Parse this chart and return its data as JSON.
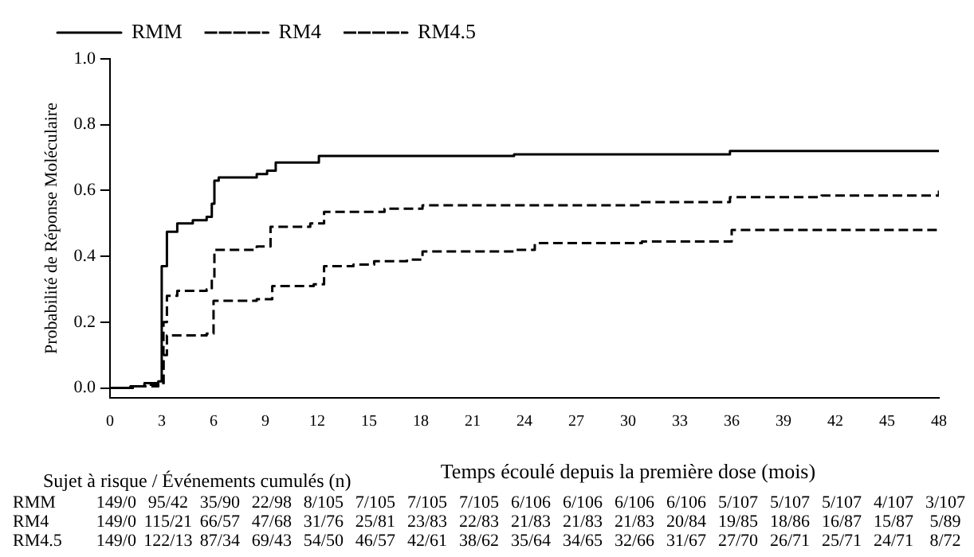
{
  "chart_data": {
    "type": "step",
    "ylabel": "Probabilité de Réponse Moléculaire",
    "xlabel": "Temps écoulé depuis la première dose (mois)",
    "xlim": [
      0,
      48
    ],
    "xticks": [
      0,
      3,
      6,
      9,
      12,
      15,
      18,
      21,
      24,
      27,
      30,
      33,
      36,
      39,
      42,
      45,
      48
    ],
    "ylim": [
      -0.03,
      1.0
    ],
    "yticks": [
      {
        "value": 0,
        "label": "0.0"
      },
      {
        "value": 0.2,
        "label": "0.2"
      },
      {
        "value": 0.4,
        "label": "0.4"
      },
      {
        "value": 0.6,
        "label": "0.6"
      },
      {
        "value": 0.8,
        "label": "0.8"
      },
      {
        "value": 1.0,
        "label": "1.0"
      }
    ],
    "grid": false,
    "legend": "top left",
    "marker": "none",
    "series": [
      {
        "name": "RMM",
        "color": "#000000",
        "line_style": "solid",
        "x": [
          0,
          1.2,
          2,
          2.8,
          3.0,
          3.3,
          3.9,
          4.8,
          5.6,
          5.9,
          6.05,
          6.3,
          8.5,
          9.1,
          9.6,
          12.1,
          23.4,
          35.9,
          48
        ],
        "values": [
          0,
          0.005,
          0.015,
          0.02,
          0.37,
          0.475,
          0.5,
          0.51,
          0.52,
          0.56,
          0.63,
          0.64,
          0.65,
          0.66,
          0.685,
          0.705,
          0.71,
          0.72,
          0.72
        ]
      },
      {
        "name": "RM4",
        "color": "#000000",
        "line_style": "dashed",
        "x": [
          0,
          1.2,
          2,
          2.8,
          3.1,
          3.3,
          3.9,
          5.6,
          5.9,
          6.05,
          8.5,
          9.3,
          11.6,
          12.4,
          15.9,
          18.1,
          30.6,
          35.9,
          41.2,
          48
        ],
        "values": [
          0,
          0.005,
          0.01,
          0.015,
          0.2,
          0.28,
          0.295,
          0.3,
          0.33,
          0.42,
          0.43,
          0.49,
          0.5,
          0.535,
          0.545,
          0.555,
          0.565,
          0.58,
          0.585,
          0.6
        ]
      },
      {
        "name": "RM4.5",
        "color": "#000000",
        "line_style": "dashed",
        "x": [
          0,
          1.5,
          2.8,
          3.1,
          3.3,
          5.6,
          6.0,
          8.5,
          9.4,
          11.8,
          12.4,
          14.1,
          15.3,
          17.2,
          18.1,
          23.5,
          24.6,
          30.8,
          36.0,
          47.8,
          48
        ],
        "values": [
          0,
          0.005,
          0.01,
          0.1,
          0.16,
          0.165,
          0.265,
          0.27,
          0.31,
          0.315,
          0.37,
          0.375,
          0.385,
          0.39,
          0.415,
          0.42,
          0.44,
          0.445,
          0.48,
          0.48,
          0.485
        ]
      }
    ],
    "annotations": [
      "Sujet à risque / Événements cumulés (n)",
      "RMM 149/0 95/42 35/90 22/98 8/105 7/105 7/105 7/105 6/106 6/106 6/106 6/106 5/107 5/107 5/107 4/107 3/107",
      "RM4 149/0 115/21 66/57 47/68 31/76 25/81 23/83 22/83 21/83 21/83 21/83 20/84 19/85 18/86 16/87 15/87 5/89",
      "RM4.5 149/0 122/13 87/34 69/43 54/50 46/57 42/61 38/62 35/64 34/65 32/66 31/67 27/70 26/71 25/71 24/71 8/72"
    ]
  }
}
